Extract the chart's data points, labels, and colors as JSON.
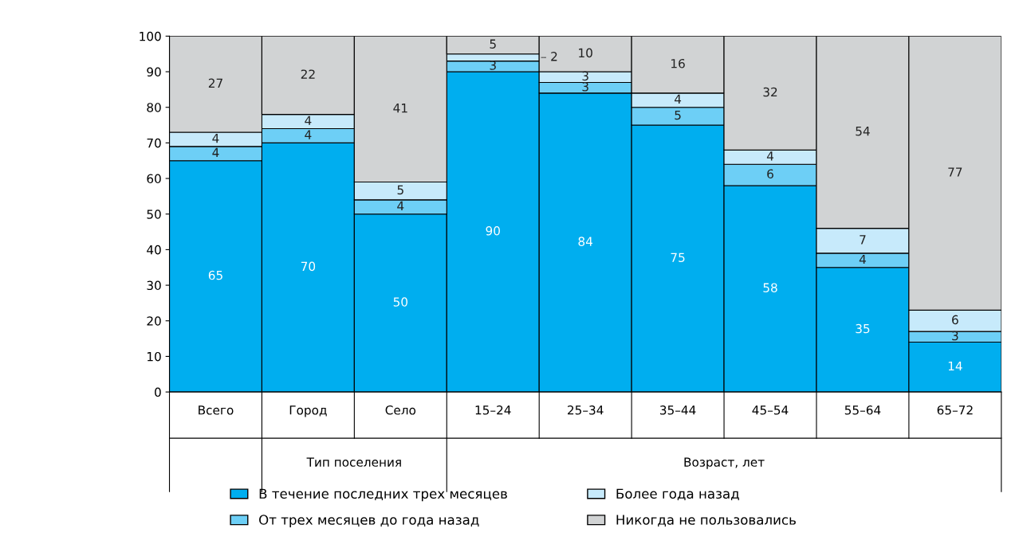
{
  "chart_data": {
    "type": "bar",
    "stacked": true,
    "categories": [
      "Всего",
      "Город",
      "Село",
      "15–24",
      "25–34",
      "35–44",
      "45–54",
      "55–64",
      "65–72"
    ],
    "series": [
      {
        "name": "В течение последних трех месяцев",
        "color": "#00aeef",
        "values": [
          65,
          70,
          50,
          90,
          84,
          75,
          58,
          35,
          14
        ]
      },
      {
        "name": "От трех месяцев до года назад",
        "color": "#6dcff6",
        "values": [
          4,
          4,
          4,
          3,
          3,
          5,
          6,
          4,
          3
        ]
      },
      {
        "name": "Более года назад",
        "color": "#c7eafb",
        "values": [
          4,
          4,
          5,
          2,
          3,
          4,
          4,
          7,
          6
        ]
      },
      {
        "name": "Никогда не пользовались",
        "color": "#d1d3d4",
        "values": [
          27,
          22,
          41,
          5,
          10,
          16,
          32,
          54,
          77
        ]
      }
    ],
    "ylim": [
      0,
      100
    ],
    "yticks": [
      0,
      10,
      20,
      30,
      40,
      50,
      60,
      70,
      80,
      90,
      100
    ],
    "data_labels": true,
    "grid": false,
    "legend": "bottom",
    "annotations": [
      "Тип поселения",
      "Возраст, лет"
    ]
  }
}
